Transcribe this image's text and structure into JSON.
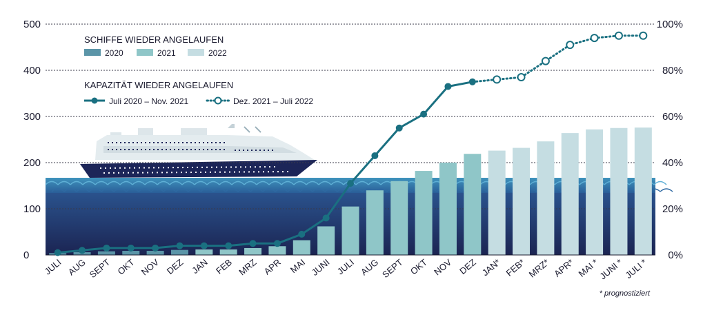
{
  "chart_data": {
    "type": "bar",
    "title": "",
    "y_left": {
      "ticks": [
        "0",
        "100",
        "200",
        "300",
        "400",
        "500"
      ],
      "range": [
        0,
        500
      ]
    },
    "y_right": {
      "ticks": [
        "0%",
        "20%",
        "40%",
        "60%",
        "80%",
        "100%"
      ],
      "range": [
        0,
        100
      ]
    },
    "categories": [
      "JULI",
      "AUG",
      "SEPT",
      "OKT",
      "NOV",
      "DEZ",
      "JAN",
      "FEB",
      "MRZ",
      "APR",
      "MAI",
      "JUNI",
      "JULI",
      "AUG",
      "SEPT",
      "OKT",
      "NOV",
      "DEZ",
      "JAN*",
      "FEB*",
      "MRZ*",
      "APR*",
      "MAI *",
      "JUNI *",
      "JULI *"
    ],
    "bar_series": [
      {
        "name": "2020",
        "color": "#5b95a8",
        "indices": [
          0,
          1,
          2,
          3,
          4,
          5
        ]
      },
      {
        "name": "2021",
        "color": "#8fc6c8",
        "indices": [
          6,
          7,
          8,
          9,
          10,
          11,
          12,
          13,
          14,
          15,
          16,
          17
        ]
      },
      {
        "name": "2022",
        "color": "#c5dde2",
        "indices": [
          18,
          19,
          20,
          21,
          22,
          23,
          24
        ]
      }
    ],
    "bar_values": [
      4,
      6,
      8,
      9,
      9,
      11,
      12,
      12,
      15,
      19,
      32,
      62,
      105,
      140,
      160,
      182,
      200,
      219,
      226,
      232,
      246,
      264,
      272,
      275,
      276
    ],
    "line_series": [
      {
        "name": "Juli  2020 – Nov. 2021",
        "style": "solid",
        "color": "#1a7081",
        "start": 0,
        "values": [
          1,
          2,
          3,
          3,
          3,
          4,
          4,
          4,
          5,
          5,
          9,
          16,
          31,
          43,
          55,
          61,
          73,
          75
        ]
      },
      {
        "name": "Dez. 2021 – Juli 2022",
        "style": "dotted",
        "color": "#1a7081",
        "start": 17,
        "values": [
          75,
          76,
          77,
          84,
          91,
          94,
          95,
          95
        ]
      }
    ],
    "legend": {
      "bars_title": "SCHIFFE WIEDER ANGELAUFEN",
      "lines_title": "KAPAZITÄT WIEDER ANGELAUFEN",
      "placement": "top-left"
    },
    "note": "* prognostiziert",
    "grid": "dotted horizontal"
  },
  "colors": {
    "sea_dark": "#1f2d5c",
    "sea_mid": "#2b4a8c",
    "wave": "#2e7aa0",
    "ship_hull": "#1c2558"
  }
}
